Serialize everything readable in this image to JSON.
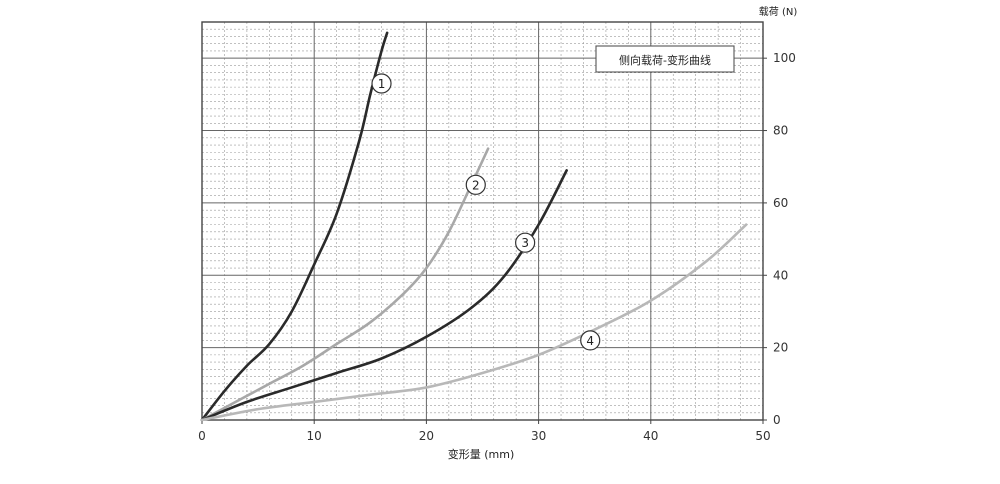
{
  "chart_data": {
    "type": "line",
    "title": "侧向载荷-变形曲线",
    "xlabel": "变形量 (mm)",
    "ylabel": "载荷 (N)",
    "xlim": [
      0,
      50
    ],
    "ylim": [
      0,
      110
    ],
    "x_ticks": [
      "0",
      "10",
      "20",
      "30",
      "40",
      "50"
    ],
    "y_ticks": [
      "0",
      "20",
      "40",
      "60",
      "80",
      "100"
    ],
    "grid": true,
    "legend_position": "top-right",
    "series": [
      {
        "name": "①",
        "color": "#2a2a2a",
        "x": [
          0,
          2,
          4,
          6,
          8,
          10,
          12,
          14,
          15,
          16,
          16.5
        ],
        "y": [
          0,
          8,
          15,
          21,
          30,
          43,
          57,
          77,
          90,
          102,
          107
        ]
      },
      {
        "name": "②",
        "color": "#a8a8a8",
        "x": [
          0,
          3,
          6,
          9,
          12,
          15,
          18,
          20,
          22,
          24,
          25.5
        ],
        "y": [
          0,
          5,
          10,
          15,
          21,
          27,
          35,
          42,
          52,
          65,
          75
        ]
      },
      {
        "name": "③",
        "color": "#2a2a2a",
        "x": [
          0,
          4,
          8,
          12,
          16,
          20,
          24,
          27,
          30,
          32.5
        ],
        "y": [
          0,
          5,
          9,
          13,
          17,
          23,
          31,
          40,
          54,
          69
        ]
      },
      {
        "name": "④",
        "color": "#b8b8b8",
        "x": [
          0,
          5,
          10,
          15,
          20,
          25,
          30,
          35,
          40,
          45,
          48.5
        ],
        "y": [
          0,
          3,
          5,
          7,
          9,
          13,
          18,
          25,
          33,
          44,
          54
        ]
      }
    ]
  }
}
